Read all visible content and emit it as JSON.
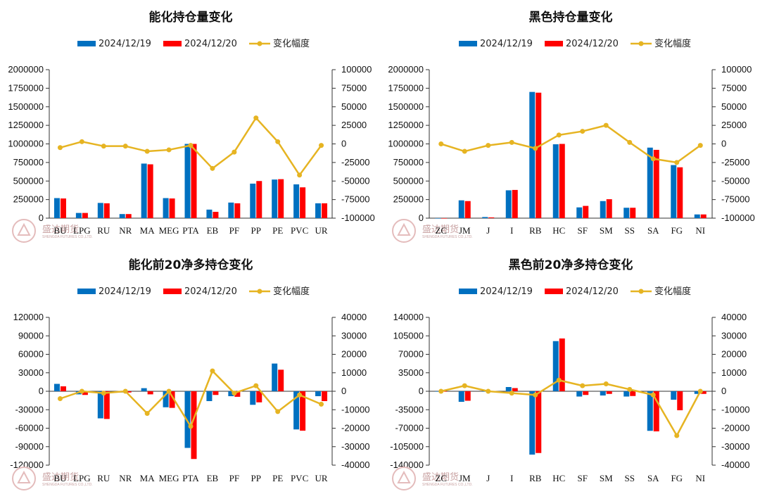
{
  "colors": {
    "s1": "#0070C0",
    "s2": "#FF0000",
    "line": "#E6B422"
  },
  "watermark": {
    "name": "盛达期货",
    "sub": "SHENGDA FUTURES CO.,LTD."
  },
  "chart_data": [
    {
      "type": "bar",
      "title": "能化持仓量变化",
      "legend": [
        "2024/12/19",
        "2024/12/20",
        "变化幅度"
      ],
      "categories": [
        "BU",
        "LPG",
        "RU",
        "NR",
        "MA",
        "MEG",
        "PTA",
        "EB",
        "PF",
        "PP",
        "PE",
        "PVC",
        "UR"
      ],
      "series": [
        {
          "name": "2024/12/19",
          "axis": "left",
          "values": [
            270000,
            70000,
            205000,
            55000,
            735000,
            270000,
            1000000,
            115000,
            210000,
            465000,
            520000,
            455000,
            200000
          ]
        },
        {
          "name": "2024/12/20",
          "axis": "left",
          "values": [
            265000,
            70000,
            200000,
            55000,
            725000,
            265000,
            1000000,
            85000,
            200000,
            500000,
            525000,
            415000,
            200000
          ]
        },
        {
          "name": "变化幅度",
          "type": "line",
          "axis": "right",
          "values": [
            -5000,
            3000,
            -3000,
            -3000,
            -10000,
            -8000,
            -2000,
            -33000,
            -11000,
            35000,
            3000,
            -42000,
            -2000
          ]
        }
      ],
      "yleft": {
        "min": 0,
        "max": 2000000,
        "step": 250000,
        "ticks": [
          "0",
          "250000",
          "500000",
          "750000",
          "1000000",
          "1250000",
          "1500000",
          "1750000",
          "2000000"
        ]
      },
      "yright": {
        "min": -100000,
        "max": 100000,
        "step": 25000,
        "ticks": [
          "-100000",
          "-75000",
          "-50000",
          "-25000",
          "0",
          "25000",
          "50000",
          "75000",
          "100000"
        ]
      }
    },
    {
      "type": "bar",
      "title": "黑色持仓量变化",
      "legend": [
        "2024/12/19",
        "2024/12/20",
        "变化幅度"
      ],
      "categories": [
        "ZC",
        "JM",
        "J",
        "I",
        "RB",
        "HC",
        "SF",
        "SM",
        "SS",
        "SA",
        "FG",
        "NI"
      ],
      "series": [
        {
          "name": "2024/12/19",
          "axis": "left",
          "values": [
            0,
            240000,
            15000,
            375000,
            1700000,
            995000,
            145000,
            230000,
            140000,
            950000,
            715000,
            50000
          ]
        },
        {
          "name": "2024/12/20",
          "axis": "left",
          "values": [
            0,
            230000,
            10000,
            380000,
            1690000,
            1000000,
            165000,
            255000,
            140000,
            920000,
            685000,
            50000
          ]
        },
        {
          "name": "变化幅度",
          "type": "line",
          "axis": "right",
          "values": [
            0,
            -10000,
            -2000,
            2000,
            -6000,
            12000,
            17000,
            25000,
            2000,
            -20000,
            -25000,
            -2000
          ]
        }
      ],
      "yleft": {
        "min": 0,
        "max": 2000000,
        "step": 250000,
        "ticks": [
          "0",
          "250000",
          "500000",
          "750000",
          "1000000",
          "1250000",
          "1500000",
          "1750000",
          "2000000"
        ]
      },
      "yright": {
        "min": -100000,
        "max": 100000,
        "step": 25000,
        "ticks": [
          "-100000",
          "-75000",
          "-50000",
          "-25000",
          "0",
          "25000",
          "50000",
          "75000",
          "100000"
        ]
      }
    },
    {
      "type": "bar",
      "title": "能化前20净多持仓变化",
      "legend": [
        "2024/12/19",
        "2024/12/20",
        "变化幅度"
      ],
      "categories": [
        "BU",
        "LPG",
        "RU",
        "NR",
        "MA",
        "MEG",
        "PTA",
        "EB",
        "PF",
        "PP",
        "PE",
        "PVC",
        "UR"
      ],
      "series": [
        {
          "name": "2024/12/19",
          "axis": "left",
          "values": [
            12000,
            -5000,
            -44000,
            -2000,
            5000,
            -26000,
            -92000,
            -16000,
            -8000,
            -22000,
            45000,
            -62000,
            -8000
          ]
        },
        {
          "name": "2024/12/20",
          "axis": "left",
          "values": [
            8000,
            -6000,
            -45000,
            -2000,
            -5000,
            -27000,
            -110000,
            -6000,
            -9000,
            -18000,
            35000,
            -64000,
            -16000
          ]
        },
        {
          "name": "变化幅度",
          "type": "line",
          "axis": "right",
          "values": [
            -4000,
            0,
            -1000,
            0,
            -12000,
            0,
            -19000,
            11000,
            -1000,
            3000,
            -11000,
            -2000,
            -7000
          ]
        }
      ],
      "yleft": {
        "min": -120000,
        "max": 120000,
        "step": 30000,
        "ticks": [
          "-120000",
          "-90000",
          "-60000",
          "-30000",
          "0",
          "30000",
          "60000",
          "90000",
          "120000"
        ]
      },
      "yright": {
        "min": -40000,
        "max": 40000,
        "step": 10000,
        "ticks": [
          "-40000",
          "-30000",
          "-20000",
          "-10000",
          "0",
          "10000",
          "20000",
          "30000",
          "40000"
        ]
      }
    },
    {
      "type": "bar",
      "title": "黑色前20净多持仓变化",
      "legend": [
        "2024/12/19",
        "2024/12/20",
        "变化幅度"
      ],
      "categories": [
        "ZC",
        "JM",
        "J",
        "I",
        "RB",
        "HC",
        "SF",
        "SM",
        "SS",
        "SA",
        "FG",
        "NI"
      ],
      "series": [
        {
          "name": "2024/12/19",
          "axis": "left",
          "values": [
            0,
            -20000,
            0,
            8000,
            -120000,
            95000,
            -10000,
            -8000,
            -10000,
            -75000,
            -16000,
            -5000
          ]
        },
        {
          "name": "2024/12/20",
          "axis": "left",
          "values": [
            0,
            -18000,
            0,
            6000,
            -117000,
            100000,
            -7000,
            -5000,
            -9000,
            -76000,
            -36000,
            -5000
          ]
        },
        {
          "name": "变化幅度",
          "type": "line",
          "axis": "right",
          "values": [
            0,
            3000,
            0,
            -1000,
            -2000,
            6000,
            3000,
            4000,
            1000,
            -2000,
            -24000,
            0
          ]
        }
      ],
      "yleft": {
        "min": -140000,
        "max": 140000,
        "step": 35000,
        "ticks": [
          "-140000",
          "-105000",
          "-70000",
          "-35000",
          "0",
          "35000",
          "70000",
          "105000",
          "140000"
        ]
      },
      "yright": {
        "min": -40000,
        "max": 40000,
        "step": 10000,
        "ticks": [
          "-40000",
          "-30000",
          "-20000",
          "-10000",
          "0",
          "10000",
          "20000",
          "30000",
          "40000"
        ]
      }
    }
  ]
}
